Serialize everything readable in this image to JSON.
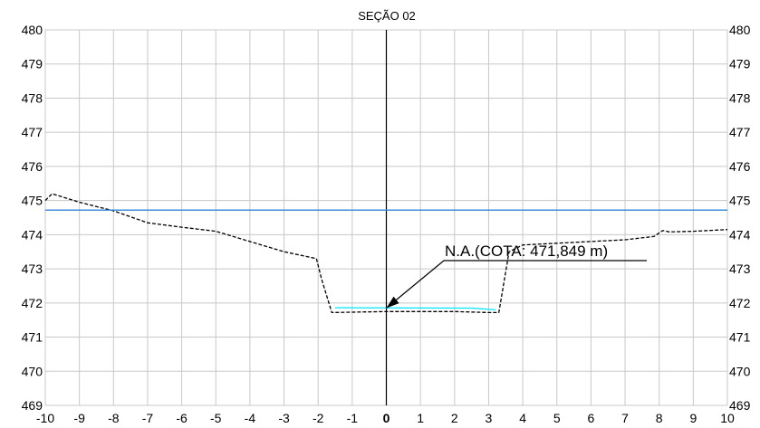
{
  "chart_data": {
    "type": "line",
    "title": "SEÇÃO 02",
    "xlabel": "",
    "ylabel": "",
    "xlim": [
      -10,
      10
    ],
    "ylim": [
      469,
      480
    ],
    "x_ticks": [
      "-10",
      "-9",
      "-8",
      "-7",
      "-6",
      "-5",
      "-4",
      "-3",
      "-2",
      "-1",
      "0",
      "1",
      "2",
      "3",
      "4",
      "5",
      "6",
      "7",
      "8",
      "9",
      "10"
    ],
    "y_ticks": [
      "469",
      "470",
      "471",
      "472",
      "473",
      "474",
      "475",
      "476",
      "477",
      "478",
      "479",
      "480"
    ],
    "grid": true,
    "series": [
      {
        "style": "dashed",
        "color": "#000000",
        "x": [
          -10,
          -9.8,
          -9,
          -8,
          -7,
          -6,
          -5,
          -4,
          -3,
          -2.05,
          -1.9,
          -1.6,
          0,
          1,
          2,
          3,
          3.3,
          3.6,
          4,
          5,
          6,
          7,
          7.85,
          8.1,
          8.3,
          9,
          10
        ],
        "y": [
          475.0,
          475.2,
          474.95,
          474.7,
          474.35,
          474.22,
          474.1,
          473.8,
          473.5,
          473.3,
          472.7,
          471.72,
          471.75,
          471.75,
          471.75,
          471.72,
          471.72,
          473.5,
          473.7,
          473.75,
          473.8,
          473.85,
          473.95,
          474.12,
          474.08,
          474.1,
          474.15
        ]
      },
      {
        "style": "solid",
        "color": "#2f86d8",
        "x": [
          -10,
          10
        ],
        "y": [
          474.72,
          474.72
        ]
      },
      {
        "style": "solid",
        "color": "#00e5ff",
        "x": [
          -1.5,
          2.5,
          3.2
        ],
        "y": [
          471.86,
          471.85,
          471.8
        ]
      }
    ],
    "annotations": [
      {
        "text": "N.A.(COTA: 471,849 m)",
        "x": 0,
        "y": 471.849
      }
    ]
  }
}
